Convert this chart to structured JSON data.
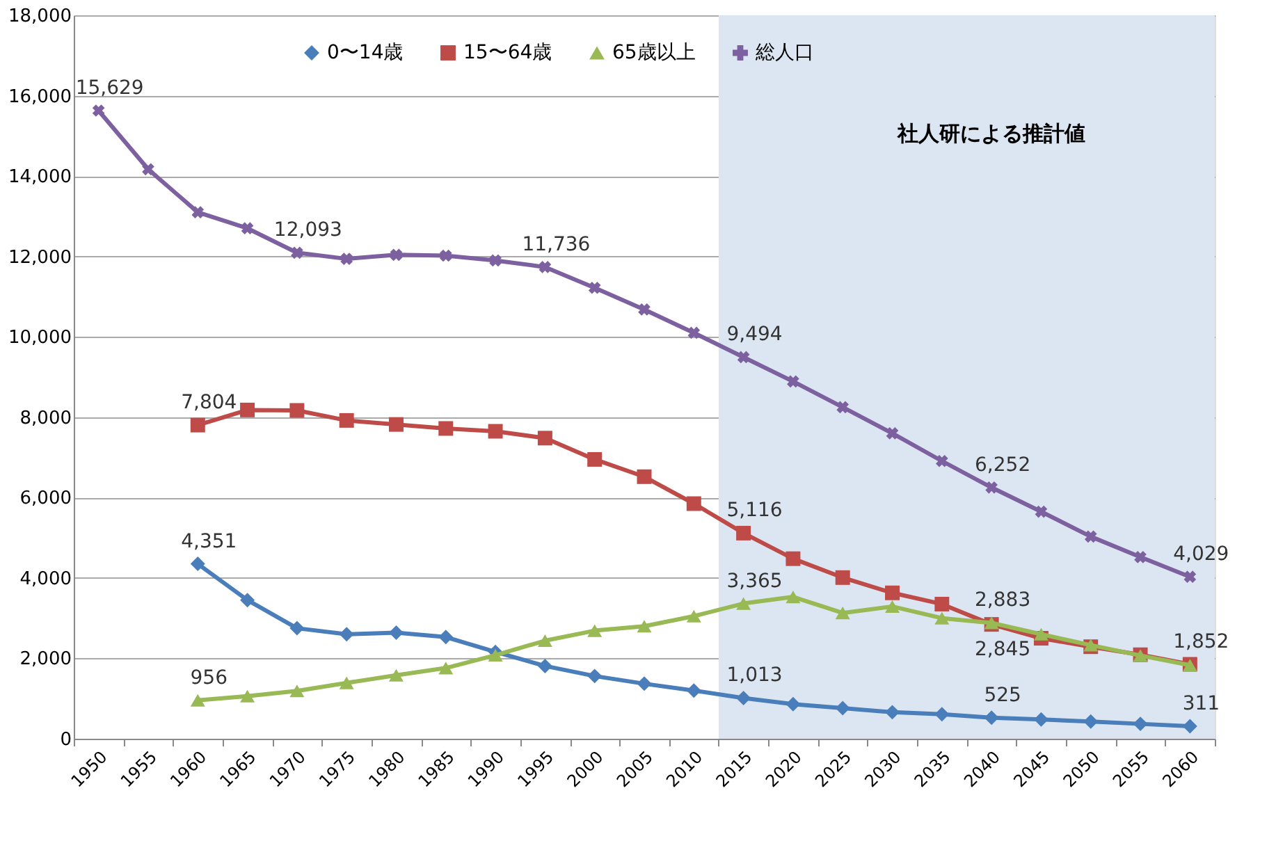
{
  "chart_data": {
    "type": "line",
    "categories": [
      "1950",
      "1955",
      "1960",
      "1965",
      "1970",
      "1975",
      "1980",
      "1985",
      "1990",
      "1995",
      "2000",
      "2005",
      "2010",
      "2015",
      "2020",
      "2025",
      "2030",
      "2035",
      "2040",
      "2045",
      "2050",
      "2055",
      "2060"
    ],
    "series": [
      {
        "name": "0〜14歳",
        "color": "#4a7ebb",
        "marker": "diamond",
        "values": [
          null,
          null,
          4351,
          3450,
          2750,
          2600,
          2640,
          2530,
          2160,
          1810,
          1560,
          1370,
          1200,
          1013,
          860,
          760,
          660,
          610,
          525,
          480,
          430,
          370,
          311
        ],
        "value_labels": [
          null,
          null,
          "4,351",
          null,
          null,
          null,
          null,
          null,
          null,
          null,
          null,
          null,
          null,
          "1,013",
          null,
          null,
          null,
          null,
          "525",
          null,
          null,
          null,
          "311"
        ]
      },
      {
        "name": "15〜64歳",
        "color": "#be4b48",
        "marker": "square",
        "values": [
          null,
          null,
          7804,
          8180,
          8170,
          7920,
          7820,
          7720,
          7650,
          7480,
          6950,
          6520,
          5850,
          5116,
          4480,
          4010,
          3630,
          3350,
          2845,
          2500,
          2290,
          2090,
          1852
        ],
        "value_labels": [
          null,
          null,
          "7,804",
          null,
          null,
          null,
          null,
          null,
          null,
          null,
          null,
          null,
          null,
          "5,116",
          null,
          null,
          null,
          null,
          "2,845",
          null,
          null,
          null,
          "1,852"
        ]
      },
      {
        "name": "65歳以上",
        "color": "#98b954",
        "marker": "triangle",
        "values": [
          null,
          null,
          956,
          1060,
          1190,
          1390,
          1580,
          1760,
          2080,
          2440,
          2690,
          2800,
          3050,
          3365,
          3530,
          3130,
          3290,
          3000,
          2883,
          2600,
          2330,
          2070,
          1830
        ],
        "value_labels": [
          null,
          null,
          "956",
          null,
          null,
          null,
          null,
          null,
          null,
          null,
          null,
          null,
          null,
          "3,365",
          null,
          null,
          null,
          null,
          "2,883",
          null,
          null,
          null,
          null
        ]
      },
      {
        "name": "総人口",
        "color": "#7d60a0",
        "marker": "cross",
        "values": [
          15629,
          14170,
          13100,
          12700,
          12093,
          11940,
          12040,
          12020,
          11900,
          11736,
          11220,
          10680,
          10100,
          9494,
          8890,
          8250,
          7600,
          6910,
          6252,
          5650,
          5030,
          4520,
          4029
        ],
        "value_labels": [
          "15,629",
          null,
          null,
          null,
          "12,093",
          null,
          null,
          null,
          null,
          "11,736",
          null,
          null,
          null,
          "9,494",
          null,
          null,
          null,
          null,
          "6,252",
          null,
          null,
          null,
          "4,029"
        ]
      }
    ],
    "ylim": [
      0,
      18000
    ],
    "yticks": [
      {
        "value": 0,
        "label": "0"
      },
      {
        "value": 2000,
        "label": "2,000"
      },
      {
        "value": 4000,
        "label": "4,000"
      },
      {
        "value": 6000,
        "label": "6,000"
      },
      {
        "value": 8000,
        "label": "8,000"
      },
      {
        "value": 10000,
        "label": "10,000"
      },
      {
        "value": 12000,
        "label": "12,000"
      },
      {
        "value": 14000,
        "label": "14,000"
      },
      {
        "value": 16000,
        "label": "16,000"
      },
      {
        "value": 18000,
        "label": "18,000"
      }
    ],
    "bands": [
      {
        "axis": "x",
        "from": "2015",
        "to": "2060",
        "label": "社人研による推計値",
        "color": "#dce6f2"
      }
    ],
    "grid": "y",
    "legend": "top",
    "line_style": "solid"
  }
}
